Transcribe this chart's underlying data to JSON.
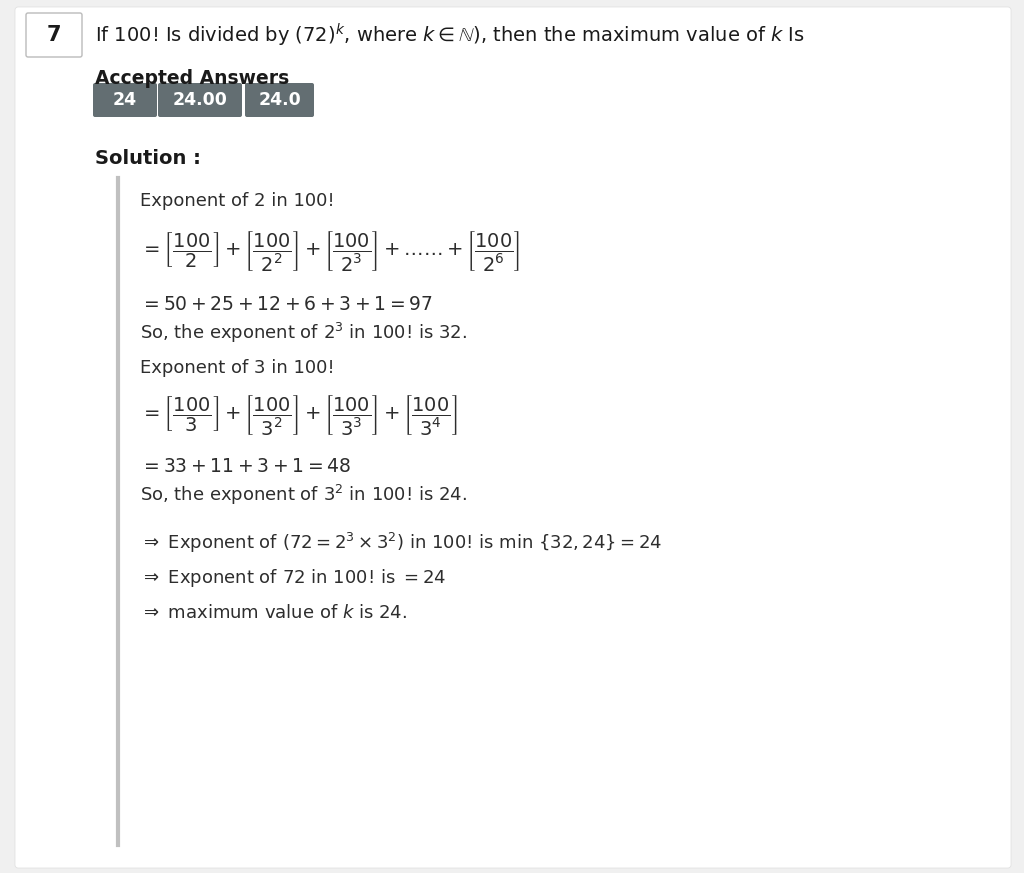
{
  "bg_color": "#f0f0f0",
  "white_bg": "#ffffff",
  "question_num": "7",
  "accepted_answers_label": "Accepted Answers",
  "answer_badges": [
    "24",
    "24.00",
    "24.0"
  ],
  "badge_bg": "#636e72",
  "badge_text_color": "#ffffff",
  "solution_label": "Solution :",
  "left_bar_color": "#c0c0c0",
  "text_color": "#2d2d2d",
  "title_color": "#1a1a1a",
  "qbox_border": "#b0b0b0"
}
